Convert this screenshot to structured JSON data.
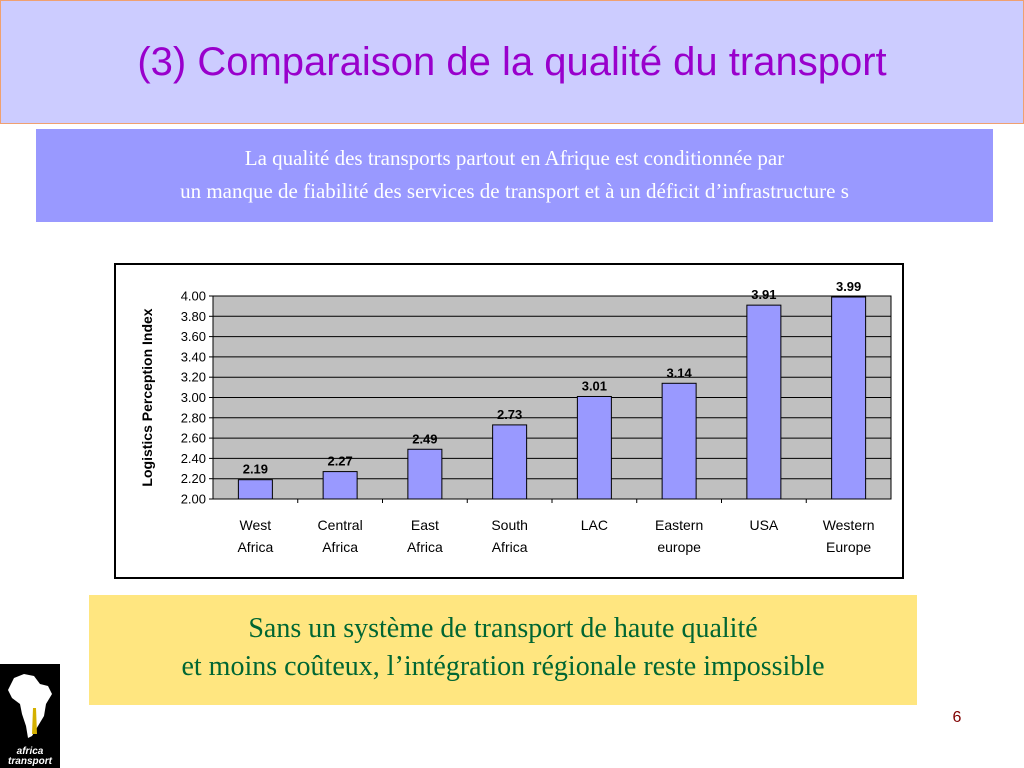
{
  "slide": {
    "title": "(3) Comparaison de la qualité du transport",
    "subtitle_line1": "La qualité des transports partout en Afrique est conditionnée par",
    "subtitle_line2": "un manque de fiabilité des services de  transport et à un déficit d’infrastructure s",
    "conclusion_line1": "Sans un système de transport de haute qualité",
    "conclusion_line2": "et moins coûteux, l’intégration régionale reste impossible",
    "page_number": "6",
    "logo_text_1": "africa",
    "logo_text_2": "transport"
  },
  "colors": {
    "title": "#9900cc",
    "title_bar": "#ccccff",
    "subtitle_box": "#9999ff",
    "plot_area": "#c0c0c0",
    "bar": "#9999ff",
    "conclusion_box": "#ffe680",
    "conclusion_text": "#006633",
    "page_number": "#800000"
  },
  "chart_data": {
    "type": "bar",
    "categories": [
      [
        "West",
        "Africa"
      ],
      [
        "Central",
        "Africa"
      ],
      [
        "East",
        "Africa"
      ],
      [
        "South",
        "Africa"
      ],
      [
        "LAC"
      ],
      [
        "Eastern",
        "europe"
      ],
      [
        "USA"
      ],
      [
        "Western",
        "Europe"
      ]
    ],
    "values": [
      2.19,
      2.27,
      2.49,
      2.73,
      3.01,
      3.14,
      3.91,
      3.99
    ],
    "value_labels": [
      "2.19",
      "2.27",
      "2.49",
      "2.73",
      "3.01",
      "3.14",
      "3.91",
      "3.99"
    ],
    "ylabel": "Logistics Perception Index",
    "xlabel": "",
    "ylim": [
      2.0,
      4.0
    ],
    "yticks": [
      "2.00",
      "2.20",
      "2.40",
      "2.60",
      "2.80",
      "3.00",
      "3.20",
      "3.40",
      "3.60",
      "3.80",
      "4.00"
    ],
    "ytick_step": 0.2,
    "grid": true,
    "legend": "none"
  }
}
